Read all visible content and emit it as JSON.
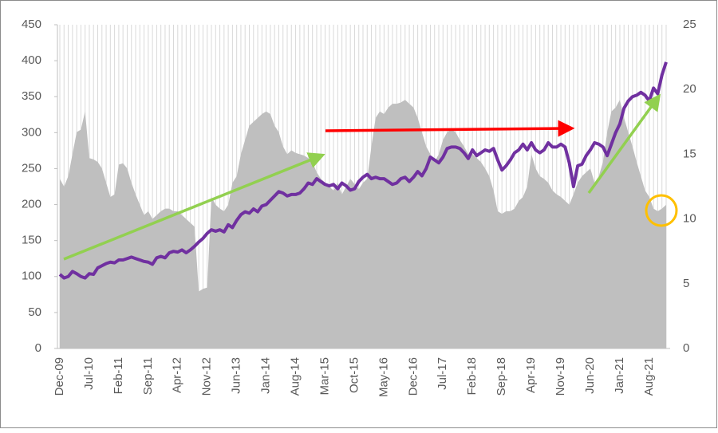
{
  "chart_data": {
    "type": "line",
    "categories": [
      "Dec-09",
      null,
      null,
      null,
      null,
      null,
      null,
      "Jul-10",
      null,
      null,
      null,
      null,
      null,
      null,
      "Feb-11",
      null,
      null,
      null,
      null,
      null,
      null,
      "Sep-11",
      null,
      null,
      null,
      null,
      null,
      null,
      "Apr-12",
      null,
      null,
      null,
      null,
      null,
      null,
      "Nov-12",
      null,
      null,
      null,
      null,
      null,
      null,
      "Jun-13",
      null,
      null,
      null,
      null,
      null,
      null,
      "Jan-14",
      null,
      null,
      null,
      null,
      null,
      null,
      "Aug-14",
      null,
      null,
      null,
      null,
      null,
      null,
      "Mar-15",
      null,
      null,
      null,
      null,
      null,
      null,
      "Oct-15",
      null,
      null,
      null,
      null,
      null,
      null,
      "May-16",
      null,
      null,
      null,
      null,
      null,
      null,
      "Dec-16",
      null,
      null,
      null,
      null,
      null,
      null,
      "Jul-17",
      null,
      null,
      null,
      null,
      null,
      null,
      "Feb-18",
      null,
      null,
      null,
      null,
      null,
      null,
      "Sep-18",
      null,
      null,
      null,
      null,
      null,
      null,
      "Apr-19",
      null,
      null,
      null,
      null,
      null,
      null,
      "Nov-19",
      null,
      null,
      null,
      null,
      null,
      null,
      "Jun-20",
      null,
      null,
      null,
      null,
      null,
      null,
      "Jan-21",
      null,
      null,
      null,
      null,
      null,
      null,
      "Aug-21",
      null,
      null,
      null,
      null
    ],
    "series": [
      {
        "type": "area",
        "axis": "y2",
        "color": "#bfbfbf",
        "values": [
          13.1,
          12.5,
          13.3,
          15.0,
          16.7,
          16.9,
          18.3,
          14.7,
          14.6,
          14.4,
          13.9,
          12.8,
          11.7,
          11.9,
          14.2,
          14.3,
          13.9,
          12.8,
          11.9,
          11.1,
          10.3,
          10.6,
          10.0,
          10.3,
          10.6,
          10.8,
          10.8,
          10.6,
          10.6,
          10.3,
          10.0,
          9.7,
          9.4,
          4.4,
          4.6,
          4.7,
          11.7,
          11.1,
          10.8,
          10.6,
          11.1,
          12.8,
          13.3,
          15.0,
          16.1,
          17.2,
          17.5,
          17.8,
          18.1,
          18.3,
          18.1,
          17.2,
          16.7,
          15.6,
          15.0,
          15.3,
          15.1,
          15.0,
          14.9,
          14.7,
          14.4,
          13.6,
          13.1,
          12.8,
          12.5,
          12.2,
          12.8,
          11.9,
          12.5,
          13.1,
          12.7,
          12.3,
          12.8,
          13.1,
          15.6,
          17.8,
          18.3,
          18.1,
          18.6,
          18.9,
          18.9,
          19.0,
          19.2,
          18.9,
          18.6,
          17.8,
          16.7,
          15.6,
          15.0,
          14.4,
          15.0,
          16.1,
          16.7,
          16.9,
          16.7,
          16.1,
          15.6,
          15.0,
          15.0,
          14.7,
          14.4,
          13.9,
          13.3,
          12.2,
          10.6,
          10.4,
          10.6,
          10.6,
          10.8,
          11.4,
          11.7,
          12.5,
          15.0,
          13.9,
          13.3,
          13.1,
          12.8,
          12.2,
          11.9,
          11.7,
          11.4,
          11.1,
          11.9,
          12.8,
          13.3,
          13.6,
          13.9,
          12.8,
          13.3,
          14.4,
          16.7,
          18.3,
          18.6,
          19.2,
          17.8,
          16.7,
          15.6,
          14.4,
          13.3,
          12.2,
          11.7,
          10.8,
          10.6,
          10.8,
          11.1
        ]
      },
      {
        "type": "line",
        "axis": "y",
        "color": "#7030a0",
        "values": [
          103,
          98,
          100,
          107,
          104,
          100,
          98,
          104,
          103,
          112,
          115,
          118,
          120,
          119,
          123,
          123,
          125,
          127,
          125,
          123,
          121,
          120,
          117,
          126,
          128,
          126,
          133,
          135,
          134,
          137,
          133,
          137,
          142,
          148,
          153,
          160,
          165,
          163,
          165,
          162,
          172,
          168,
          178,
          186,
          190,
          188,
          194,
          190,
          198,
          200,
          206,
          212,
          218,
          216,
          212,
          214,
          214,
          216,
          222,
          230,
          228,
          236,
          232,
          228,
          226,
          228,
          222,
          230,
          226,
          220,
          222,
          232,
          238,
          242,
          236,
          238,
          236,
          236,
          232,
          228,
          230,
          236,
          238,
          232,
          238,
          246,
          240,
          250,
          266,
          262,
          258,
          266,
          278,
          280,
          280,
          278,
          272,
          264,
          276,
          268,
          272,
          276,
          274,
          278,
          262,
          248,
          254,
          262,
          272,
          276,
          284,
          276,
          286,
          276,
          272,
          276,
          286,
          280,
          280,
          284,
          280,
          258,
          225,
          254,
          256,
          268,
          276,
          286,
          284,
          280,
          268,
          284,
          300,
          312,
          334,
          344,
          350,
          352,
          356,
          352,
          344,
          362,
          354,
          380,
          398
        ]
      }
    ],
    "ylim": [
      0,
      450
    ],
    "yticks": [
      0,
      50,
      100,
      150,
      200,
      250,
      300,
      350,
      400,
      450
    ],
    "y2lim": [
      0,
      25
    ],
    "y2ticks": [
      0,
      5,
      10,
      15,
      20,
      25
    ],
    "grid": true
  }
}
